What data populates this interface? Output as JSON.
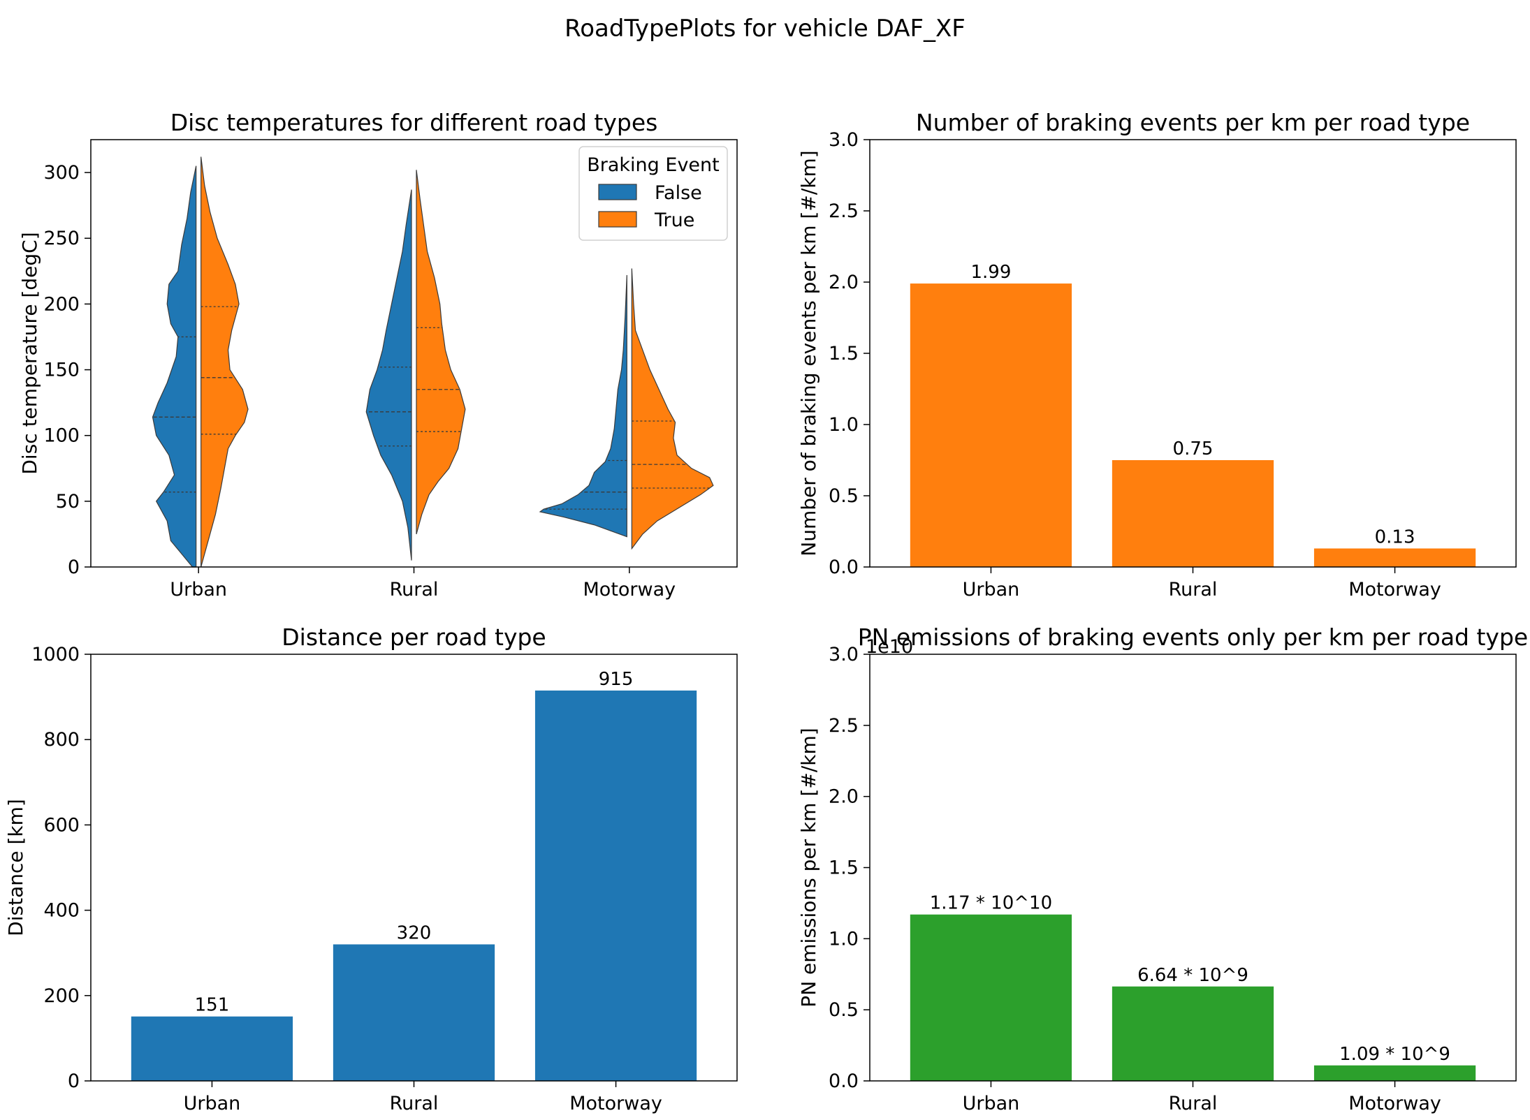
{
  "figure": {
    "suptitle": "RoadTypePlots for vehicle DAF_XF"
  },
  "chart_data": [
    {
      "type": "violin",
      "title": "Disc temperatures for different road types",
      "xlabel": "",
      "ylabel": "Disc temperature [degC]",
      "categories": [
        "Urban",
        "Rural",
        "Motorway"
      ],
      "ylim": [
        0,
        325
      ],
      "yticks": [
        0,
        50,
        100,
        150,
        200,
        250,
        300
      ],
      "legend": {
        "title": "Braking Event",
        "placement": "top-right",
        "entries": [
          {
            "label": "False",
            "color": "#1f77b4"
          },
          {
            "label": "True",
            "color": "#ff7f0e"
          }
        ]
      },
      "series": [
        {
          "name": "False",
          "color": "#1f77b4",
          "violins": [
            {
              "category": "Urban",
              "min": 0,
              "max": 305,
              "quartiles": [
                57,
                114,
                175
              ],
              "profile": [
                [
                  0,
                  0.02
                ],
                [
                  10,
                  0.08
                ],
                [
                  20,
                  0.14
                ],
                [
                  35,
                  0.16
                ],
                [
                  50,
                  0.22
                ],
                [
                  57,
                  0.18
                ],
                [
                  70,
                  0.12
                ],
                [
                  85,
                  0.15
                ],
                [
                  100,
                  0.22
                ],
                [
                  114,
                  0.24
                ],
                [
                  125,
                  0.21
                ],
                [
                  140,
                  0.16
                ],
                [
                  160,
                  0.11
                ],
                [
                  175,
                  0.1
                ],
                [
                  185,
                  0.14
                ],
                [
                  200,
                  0.16
                ],
                [
                  215,
                  0.15
                ],
                [
                  225,
                  0.1
                ],
                [
                  245,
                  0.08
                ],
                [
                  265,
                  0.05
                ],
                [
                  285,
                  0.03
                ],
                [
                  305,
                  0.0
                ]
              ]
            },
            {
              "category": "Rural",
              "min": 5,
              "max": 287,
              "quartiles": [
                92,
                118,
                152
              ],
              "profile": [
                [
                  5,
                  0.0
                ],
                [
                  30,
                  0.02
                ],
                [
                  50,
                  0.05
                ],
                [
                  70,
                  0.11
                ],
                [
                  85,
                  0.17
                ],
                [
                  100,
                  0.21
                ],
                [
                  118,
                  0.25
                ],
                [
                  135,
                  0.23
                ],
                [
                  150,
                  0.19
                ],
                [
                  165,
                  0.16
                ],
                [
                  180,
                  0.14
                ],
                [
                  200,
                  0.11
                ],
                [
                  220,
                  0.08
                ],
                [
                  240,
                  0.05
                ],
                [
                  260,
                  0.03
                ],
                [
                  287,
                  0.0
                ]
              ]
            },
            {
              "category": "Motorway",
              "min": 23,
              "max": 222,
              "quartiles": [
                44,
                57,
                81
              ],
              "profile": [
                [
                  23,
                  0.0
                ],
                [
                  32,
                  0.18
                ],
                [
                  38,
                  0.35
                ],
                [
                  42,
                  0.48
                ],
                [
                  44,
                  0.46
                ],
                [
                  48,
                  0.36
                ],
                [
                  55,
                  0.27
                ],
                [
                  62,
                  0.21
                ],
                [
                  72,
                  0.18
                ],
                [
                  80,
                  0.12
                ],
                [
                  90,
                  0.09
                ],
                [
                  105,
                  0.07
                ],
                [
                  120,
                  0.06
                ],
                [
                  135,
                  0.05
                ],
                [
                  150,
                  0.03
                ],
                [
                  165,
                  0.02
                ],
                [
                  190,
                  0.01
                ],
                [
                  222,
                  0.0
                ]
              ]
            }
          ]
        },
        {
          "name": "True",
          "color": "#ff7f0e",
          "violins": [
            {
              "category": "Urban",
              "min": 0,
              "max": 312,
              "quartiles": [
                101,
                144,
                198
              ],
              "profile": [
                [
                  0,
                  0.0
                ],
                [
                  20,
                  0.04
                ],
                [
                  40,
                  0.08
                ],
                [
                  60,
                  0.11
                ],
                [
                  75,
                  0.13
                ],
                [
                  90,
                  0.15
                ],
                [
                  100,
                  0.19
                ],
                [
                  110,
                  0.24
                ],
                [
                  120,
                  0.26
                ],
                [
                  135,
                  0.23
                ],
                [
                  150,
                  0.16
                ],
                [
                  165,
                  0.15
                ],
                [
                  180,
                  0.17
                ],
                [
                  200,
                  0.21
                ],
                [
                  215,
                  0.19
                ],
                [
                  230,
                  0.15
                ],
                [
                  250,
                  0.09
                ],
                [
                  270,
                  0.05
                ],
                [
                  290,
                  0.02
                ],
                [
                  312,
                  0.0
                ]
              ]
            },
            {
              "category": "Rural",
              "min": 25,
              "max": 302,
              "quartiles": [
                103,
                135,
                182
              ],
              "profile": [
                [
                  25,
                  0.0
                ],
                [
                  40,
                  0.03
                ],
                [
                  55,
                  0.07
                ],
                [
                  65,
                  0.12
                ],
                [
                  75,
                  0.18
                ],
                [
                  90,
                  0.23
                ],
                [
                  105,
                  0.25
                ],
                [
                  120,
                  0.27
                ],
                [
                  135,
                  0.24
                ],
                [
                  150,
                  0.19
                ],
                [
                  165,
                  0.16
                ],
                [
                  185,
                  0.14
                ],
                [
                  200,
                  0.13
                ],
                [
                  220,
                  0.1
                ],
                [
                  240,
                  0.06
                ],
                [
                  260,
                  0.04
                ],
                [
                  280,
                  0.02
                ],
                [
                  302,
                  0.0
                ]
              ]
            },
            {
              "category": "Motorway",
              "min": 14,
              "max": 227,
              "quartiles": [
                60,
                78,
                111
              ],
              "profile": [
                [
                  14,
                  0.0
                ],
                [
                  25,
                  0.06
                ],
                [
                  35,
                  0.14
                ],
                [
                  45,
                  0.26
                ],
                [
                  55,
                  0.38
                ],
                [
                  62,
                  0.45
                ],
                [
                  68,
                  0.43
                ],
                [
                  75,
                  0.33
                ],
                [
                  85,
                  0.25
                ],
                [
                  98,
                  0.23
                ],
                [
                  110,
                  0.24
                ],
                [
                  120,
                  0.2
                ],
                [
                  135,
                  0.15
                ],
                [
                  150,
                  0.1
                ],
                [
                  165,
                  0.06
                ],
                [
                  180,
                  0.02
                ],
                [
                  200,
                  0.01
                ],
                [
                  227,
                  0.0
                ]
              ]
            }
          ]
        }
      ]
    },
    {
      "type": "bar",
      "title": "Number of braking events per km per road type",
      "xlabel": "",
      "ylabel": "Number of braking events per km [#/km]",
      "categories": [
        "Urban",
        "Rural",
        "Motorway"
      ],
      "values": [
        1.99,
        0.75,
        0.13
      ],
      "data_labels": [
        "1.99",
        "0.75",
        "0.13"
      ],
      "color": "#ff7f0e",
      "ylim": [
        0,
        3.0
      ],
      "yticks": [
        0,
        0.5,
        1.0,
        1.5,
        2.0,
        2.5,
        3.0
      ],
      "ytick_labels": [
        "0.0",
        "0.5",
        "1.0",
        "1.5",
        "2.0",
        "2.5",
        "3.0"
      ]
    },
    {
      "type": "bar",
      "title": "Distance per road type",
      "xlabel": "",
      "ylabel": "Distance [km]",
      "categories": [
        "Urban",
        "Rural",
        "Motorway"
      ],
      "values": [
        151,
        320,
        915
      ],
      "data_labels": [
        "151",
        "320",
        "915"
      ],
      "color": "#1f77b4",
      "ylim": [
        0,
        1000
      ],
      "yticks": [
        0,
        200,
        400,
        600,
        800,
        1000
      ],
      "ytick_labels": [
        "0",
        "200",
        "400",
        "600",
        "800",
        "1000"
      ]
    },
    {
      "type": "bar",
      "title": "PN emissions of braking events only per km per road type",
      "xlabel": "",
      "ylabel": "PN emissions per km [#/km]",
      "categories": [
        "Urban",
        "Rural",
        "Motorway"
      ],
      "values": [
        11700000000,
        6640000000,
        1090000000
      ],
      "data_labels": [
        "1.17 * 10^10",
        "6.64 * 10^9",
        "1.09 * 10^9"
      ],
      "color": "#2ca02c",
      "ylim": [
        0,
        30000000000
      ],
      "axis_offset_label": "1e10",
      "yticks": [
        0,
        5000000000,
        10000000000,
        15000000000,
        20000000000,
        25000000000,
        30000000000
      ],
      "ytick_labels": [
        "0.0",
        "0.5",
        "1.0",
        "1.5",
        "2.0",
        "2.5",
        "3.0"
      ]
    }
  ]
}
